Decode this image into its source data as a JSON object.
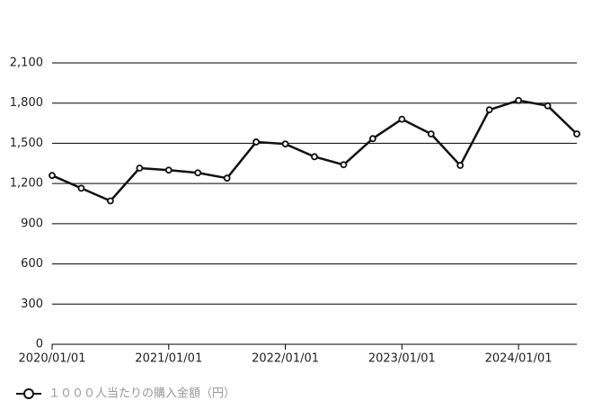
{
  "chart_data": {
    "type": "line",
    "categories": [
      "2020/01/01",
      null,
      null,
      null,
      "2021/01/01",
      null,
      null,
      null,
      "2022/01/01",
      null,
      null,
      null,
      "2023/01/01",
      null,
      null,
      null,
      "2024/01/01",
      null,
      null
    ],
    "series": [
      {
        "name": "１０００人当たりの購入金額（円）",
        "color": "#111111",
        "values": [
          1260,
          1165,
          1070,
          1315,
          1300,
          1280,
          1240,
          1510,
          1495,
          1400,
          1340,
          1535,
          1680,
          1570,
          1335,
          1750,
          1820,
          1780,
          1570
        ]
      }
    ],
    "ylim": [
      0,
      2100
    ],
    "yticks": [
      0,
      300,
      600,
      900,
      {
        "value": 1200,
        "label": "1,200"
      },
      {
        "value": 1500,
        "label": "1,500"
      },
      {
        "value": 1800,
        "label": "1,800"
      },
      {
        "value": 2100,
        "label": "2,100"
      }
    ],
    "grid": true,
    "legend": "bottom-left"
  }
}
